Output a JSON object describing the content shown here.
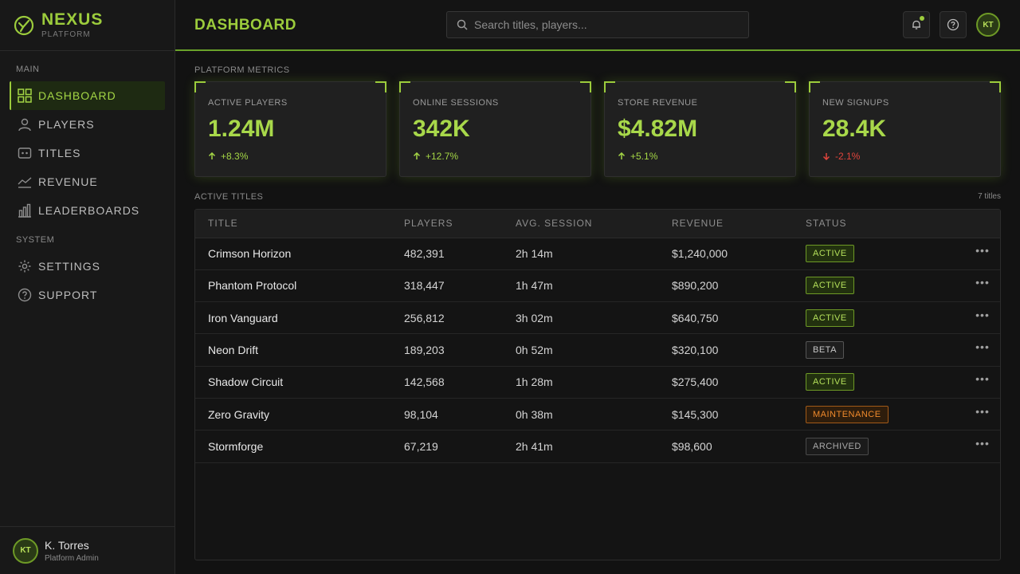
{
  "brand": {
    "name": "NEXUS",
    "sub": "PLATFORM"
  },
  "sidebar": {
    "main_label": "MAIN",
    "main_items": [
      {
        "label": "DASHBOARD",
        "icon": "dashboard-grid-icon",
        "active": true
      },
      {
        "label": "PLAYERS",
        "icon": "user-icon"
      },
      {
        "label": "TITLES",
        "icon": "gamepad-icon"
      },
      {
        "label": "REVENUE",
        "icon": "line-chart-icon"
      },
      {
        "label": "LEADERBOARDS",
        "icon": "bar-chart-icon"
      }
    ],
    "system_label": "SYSTEM",
    "system_items": [
      {
        "label": "SETTINGS",
        "icon": "gear-icon"
      },
      {
        "label": "SUPPORT",
        "icon": "help-circle-icon"
      }
    ]
  },
  "user": {
    "initials": "KT",
    "name": "K. Torres",
    "role": "Platform Admin"
  },
  "header": {
    "title": "DASHBOARD",
    "search_placeholder": "Search titles, players...",
    "avatar_initials": "KT"
  },
  "metrics_label": "PLATFORM METRICS",
  "metrics": [
    {
      "label": "ACTIVE PLAYERS",
      "value": "1.24M",
      "change": "+8.3%",
      "direction": "up"
    },
    {
      "label": "ONLINE SESSIONS",
      "value": "342K",
      "change": "+12.7%",
      "direction": "up"
    },
    {
      "label": "STORE REVENUE",
      "value": "$4.82M",
      "change": "+5.1%",
      "direction": "up"
    },
    {
      "label": "NEW SIGNUPS",
      "value": "28.4K",
      "change": "-2.1%",
      "direction": "down"
    }
  ],
  "titles_section": {
    "label": "ACTIVE TITLES",
    "count": "7 titles",
    "columns": [
      "TITLE",
      "PLAYERS",
      "AVG. SESSION",
      "REVENUE",
      "STATUS"
    ],
    "rows": [
      {
        "title": "Crimson Horizon",
        "players": "482,391",
        "avg": "2h 14m",
        "revenue": "$1,240,000",
        "status": "ACTIVE",
        "kind": "active"
      },
      {
        "title": "Phantom Protocol",
        "players": "318,447",
        "avg": "1h 47m",
        "revenue": "$890,200",
        "status": "ACTIVE",
        "kind": "active"
      },
      {
        "title": "Iron Vanguard",
        "players": "256,812",
        "avg": "3h 02m",
        "revenue": "$640,750",
        "status": "ACTIVE",
        "kind": "active"
      },
      {
        "title": "Neon Drift",
        "players": "189,203",
        "avg": "0h 52m",
        "revenue": "$320,100",
        "status": "BETA",
        "kind": "beta"
      },
      {
        "title": "Shadow Circuit",
        "players": "142,568",
        "avg": "1h 28m",
        "revenue": "$275,400",
        "status": "ACTIVE",
        "kind": "active"
      },
      {
        "title": "Zero Gravity",
        "players": "98,104",
        "avg": "0h 38m",
        "revenue": "$145,300",
        "status": "MAINTENANCE",
        "kind": "maintenance"
      },
      {
        "title": "Stormforge",
        "players": "67,219",
        "avg": "2h 41m",
        "revenue": "$98,600",
        "status": "ARCHIVED",
        "kind": "archived"
      }
    ]
  },
  "colors": {
    "accent": "#9ccc3c",
    "danger": "#e0443c",
    "warning": "#f08a2c",
    "bg": "#121212"
  }
}
